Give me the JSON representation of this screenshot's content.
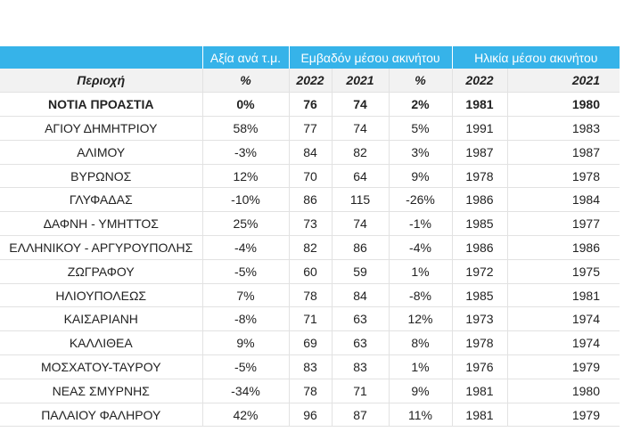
{
  "groups": {
    "value_per_sqm": "Αξία ανά τ.μ.",
    "area": "Εμβαδόν μέσου ακινήτου",
    "age": "Ηλικία μέσου ακινήτου"
  },
  "subheader": [
    "Περιοχή",
    "%",
    "2022",
    "2021",
    "%",
    "2022",
    "2021"
  ],
  "rows": [
    [
      "ΝΟΤΙΑ ΠΡΟΑΣΤΙΑ",
      "0%",
      "76",
      "74",
      "2%",
      "1981",
      "1980"
    ],
    [
      "ΑΓΙΟΥ ΔΗΜΗΤΡΙΟΥ",
      "58%",
      "77",
      "74",
      "5%",
      "1991",
      "1983"
    ],
    [
      "ΑΛΙΜΟΥ",
      "-3%",
      "84",
      "82",
      "3%",
      "1987",
      "1987"
    ],
    [
      "ΒΥΡΩΝΟΣ",
      "12%",
      "70",
      "64",
      "9%",
      "1978",
      "1978"
    ],
    [
      "ΓΛΥΦΑΔΑΣ",
      "-10%",
      "86",
      "115",
      "-26%",
      "1986",
      "1984"
    ],
    [
      "ΔΑΦΝΗ - ΥΜΗΤΤΟΣ",
      "25%",
      "73",
      "74",
      "-1%",
      "1985",
      "1977"
    ],
    [
      "ΕΛΛΗΝΙΚΟΥ - ΑΡΓΥΡΟΥΠΟΛΗΣ",
      "-4%",
      "82",
      "86",
      "-4%",
      "1986",
      "1986"
    ],
    [
      "ΖΩΓΡΑΦΟΥ",
      "-5%",
      "60",
      "59",
      "1%",
      "1972",
      "1975"
    ],
    [
      "ΗΛΙΟΥΠΟΛΕΩΣ",
      "7%",
      "78",
      "84",
      "-8%",
      "1985",
      "1981"
    ],
    [
      "ΚΑΙΣΑΡΙΑΝΗ",
      "-8%",
      "71",
      "63",
      "12%",
      "1973",
      "1974"
    ],
    [
      "ΚΑΛΛΙΘΕΑ",
      "9%",
      "69",
      "63",
      "8%",
      "1978",
      "1974"
    ],
    [
      "ΜΟΣΧΑΤΟΥ-ΤΑΥΡΟΥ",
      "-5%",
      "83",
      "83",
      "1%",
      "1976",
      "1979"
    ],
    [
      "ΝΕΑΣ ΣΜΥΡΝΗΣ",
      "-34%",
      "78",
      "71",
      "9%",
      "1981",
      "1980"
    ],
    [
      "ΠΑΛΑΙΟΥ ΦΑΛΗΡΟΥ",
      "42%",
      "96",
      "87",
      "11%",
      "1981",
      "1979"
    ]
  ],
  "colors": {
    "header_bg": "#36b3e9",
    "subheader_bg": "#f2f2f2",
    "grid": "#e2e2e2"
  }
}
